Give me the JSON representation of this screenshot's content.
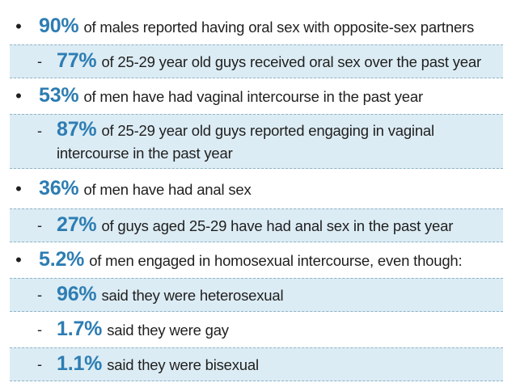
{
  "items": [
    {
      "level": "main",
      "stat": "90%",
      "text": "of males reported having oral sex with opposite-sex partners"
    },
    {
      "level": "sub",
      "stat": "77%",
      "text": "of 25-29 year old guys received oral sex over the past year"
    },
    {
      "level": "main",
      "stat": "53%",
      "text": "of men have had vaginal intercourse in the past year"
    },
    {
      "level": "sub",
      "stat": "87%",
      "text": "of 25-29 year old guys reported engaging in vaginal intercourse in the past year"
    },
    {
      "level": "main",
      "stat": "36%",
      "text": "of men have had anal sex"
    },
    {
      "level": "sub",
      "stat": "27%",
      "text": "of guys aged 25-29 have had anal sex in the past year"
    },
    {
      "level": "main",
      "stat": "5.2%",
      "text": "of men engaged in homosexual intercourse, even though:"
    },
    {
      "level": "sub",
      "stat": "96%",
      "text": "said they were heterosexual"
    },
    {
      "level": "sub",
      "stat": "1.7%",
      "text": "said they were gay"
    },
    {
      "level": "sub",
      "stat": "1.1%",
      "text": "said they were bisexual"
    }
  ],
  "markers": {
    "main": "•",
    "sub": "-"
  },
  "colors": {
    "stat": "#2d7db3",
    "sub_background": "#dcecf4",
    "dash": "#8fb3c9"
  }
}
